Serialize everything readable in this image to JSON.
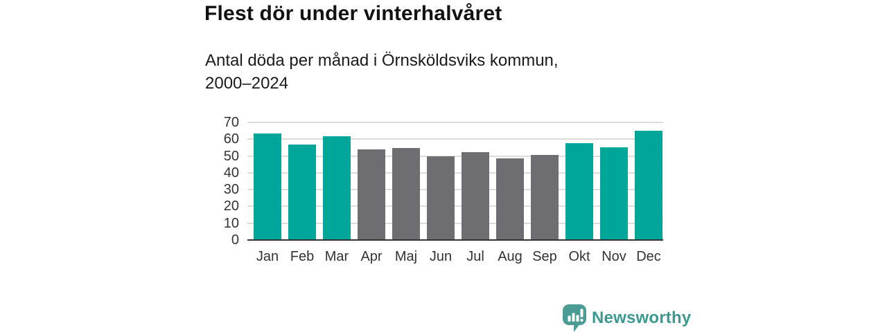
{
  "header": {
    "title": "Flest dör under vinterhalvåret",
    "subtitle_line1": "Antal döda per månad i Örnsköldsviks kommun,",
    "subtitle_line2": "2000–2024"
  },
  "chart_data": {
    "type": "bar",
    "title": "Flest dör under vinterhalvåret",
    "subtitle": "Antal döda per månad i Örnsköldsviks kommun, 2000–2024",
    "categories": [
      "Jan",
      "Feb",
      "Mar",
      "Apr",
      "Maj",
      "Jun",
      "Jul",
      "Aug",
      "Sep",
      "Okt",
      "Nov",
      "Dec"
    ],
    "values": [
      63.4,
      56.9,
      61.9,
      53.9,
      54.6,
      49.7,
      52.4,
      48.7,
      50.5,
      57.8,
      55.1,
      65.0
    ],
    "bar_groups": [
      "winter",
      "winter",
      "winter",
      "summer",
      "summer",
      "summer",
      "summer",
      "summer",
      "summer",
      "winter",
      "winter",
      "winter"
    ],
    "group_colors": {
      "winter": "#00a69a",
      "summer": "#6d6d72"
    },
    "xlabel": "",
    "ylabel": "",
    "ylim": [
      0,
      70
    ],
    "yticks": [
      0,
      10,
      20,
      30,
      40,
      50,
      60,
      70
    ],
    "grid": true,
    "gridline_color": "#dcdcdc",
    "axis_line_color": "#333333",
    "legend": false
  },
  "logo": {
    "text": "Newsworthy",
    "text_color": "#3d998f",
    "icon": "newsworthy-bubble-bar-chart-icon",
    "icon_color": "#4a9c94"
  }
}
